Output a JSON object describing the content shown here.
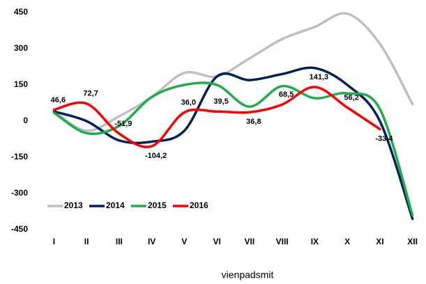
{
  "chart_data": {
    "type": "line",
    "categories": [
      "I",
      "II",
      "III",
      "IV",
      "V",
      "VI",
      "VII",
      "VIII",
      "IX",
      "X",
      "XI",
      "XII"
    ],
    "series": [
      {
        "name": "2013",
        "color": "#bfbfbf",
        "values": [
          40,
          -40,
          20,
          100,
          200,
          185,
          260,
          340,
          390,
          445,
          320,
          70
        ]
      },
      {
        "name": "2014",
        "color": "#002060",
        "values": [
          40,
          0,
          -80,
          -85,
          -40,
          185,
          170,
          195,
          220,
          150,
          0,
          -405
        ]
      },
      {
        "name": "2015",
        "color": "#1fad4b",
        "values": [
          35,
          -50,
          -20,
          100,
          150,
          150,
          60,
          145,
          95,
          115,
          50,
          -390
        ]
      },
      {
        "name": "2016",
        "color": "#ff0000",
        "values": [
          46.6,
          72.7,
          -51.9,
          -104.2,
          36.0,
          39.5,
          36.8,
          68.5,
          141.3,
          56.2,
          -33.4,
          null
        ],
        "value_labels": [
          "46,6",
          "72,7",
          "-51,9",
          "-104,2",
          "36,0",
          "39,5",
          "36,8",
          "68,5",
          "141,3",
          "56,2",
          "-33,4",
          null
        ]
      }
    ],
    "x_label": "vienpadsmit",
    "ylim": [
      -450,
      450
    ],
    "yticks": [
      -450,
      -300,
      -150,
      0,
      150,
      300,
      450
    ],
    "grid": false,
    "legend": "lower left"
  }
}
